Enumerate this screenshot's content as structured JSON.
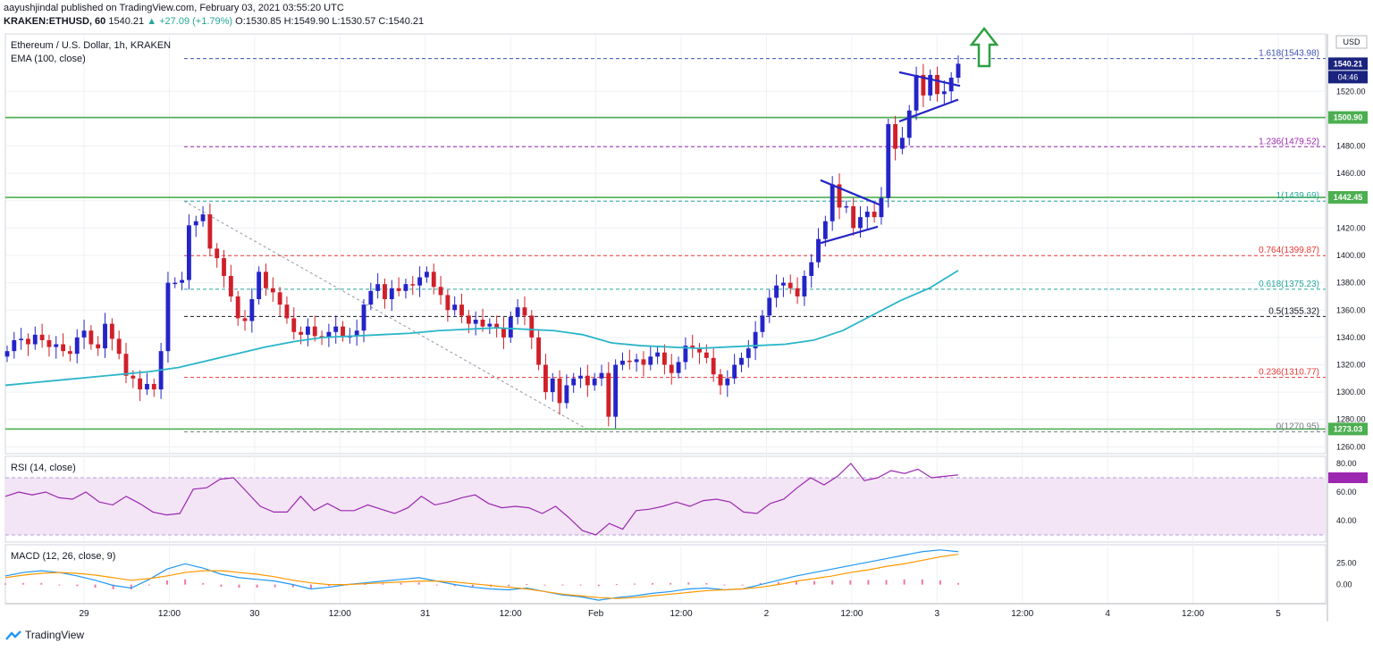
{
  "header": {
    "line1": "aayushjindal published on TradingView.com, February 03, 2021 03:55:20 UTC",
    "symbol": "KRAKEN:ETHUSD, 60",
    "last": "1540.21",
    "change": "▲ +27.09 (+1.79%)",
    "ohlc": "O:1530.85 H:1549.90 L:1530.57 C:1540.21"
  },
  "footer": {
    "brand": "TradingView"
  },
  "colors": {
    "up": "#2424c8",
    "down": "#d0202a",
    "ema": "#2ab5c8",
    "support": "#4caf50",
    "rsi": "#9c27b0",
    "macd": "#2196f3",
    "signal": "#ff9800",
    "arrow": "#2ea043"
  },
  "chart_data": [
    {
      "type": "candlestick",
      "title": "Ethereum / U.S. Dollar, 1h, KRAKEN",
      "indicator": "EMA (100, close)",
      "currency": "USD",
      "ylim": [
        1255,
        1562
      ],
      "y_ticks": [
        1260,
        1280,
        1300,
        1320,
        1340,
        1360,
        1380,
        1400,
        1420,
        1440,
        1460,
        1480,
        1500,
        1520
      ],
      "x_ticks": [
        "29",
        "12:00",
        "30",
        "12:00",
        "31",
        "12:00",
        "Feb",
        "12:00",
        "2",
        "12:00",
        "3",
        "12:00",
        "4",
        "12:00",
        "5"
      ],
      "ohlc_closes": [
        1330,
        1338,
        1339,
        1335,
        1342,
        1338,
        1333,
        1335,
        1330,
        1328,
        1340,
        1345,
        1335,
        1332,
        1350,
        1339,
        1328,
        1312,
        1310,
        1302,
        1306,
        1302,
        1330,
        1380,
        1380,
        1382,
        1422,
        1425,
        1430,
        1405,
        1398,
        1385,
        1370,
        1354,
        1352,
        1368,
        1388,
        1376,
        1373,
        1364,
        1354,
        1344,
        1342,
        1348,
        1341,
        1340,
        1344,
        1348,
        1341,
        1341,
        1345,
        1364,
        1374,
        1379,
        1368,
        1376,
        1374,
        1379,
        1378,
        1384,
        1388,
        1377,
        1371,
        1360,
        1364,
        1356,
        1350,
        1353,
        1348,
        1350,
        1347,
        1340,
        1355,
        1362,
        1356,
        1340,
        1320,
        1300,
        1310,
        1292,
        1305,
        1310,
        1312,
        1305,
        1310,
        1314,
        1282,
        1320,
        1323,
        1322,
        1324,
        1320,
        1326,
        1329,
        1320,
        1314,
        1322,
        1334,
        1332,
        1329,
        1325,
        1313,
        1305,
        1310,
        1320,
        1325,
        1332,
        1344,
        1356,
        1369,
        1378,
        1380,
        1376,
        1370,
        1385,
        1395,
        1412,
        1425,
        1452,
        1435,
        1436,
        1420,
        1428,
        1432,
        1428,
        1442,
        1496,
        1478,
        1486,
        1506,
        1532,
        1517,
        1532,
        1518,
        1520,
        1530,
        1540.21
      ],
      "ema_100": [
        1305,
        1307,
        1309,
        1311,
        1313,
        1315,
        1318,
        1323,
        1328,
        1333,
        1337,
        1340,
        1341,
        1342,
        1343,
        1345,
        1346,
        1347,
        1346,
        1345,
        1342,
        1336,
        1334,
        1333,
        1332,
        1333,
        1334,
        1335,
        1338,
        1345,
        1356,
        1367,
        1376,
        1389
      ],
      "support_lines": [
        {
          "label": "1500.90",
          "value": 1500.9
        },
        {
          "label": "1442.45",
          "value": 1442.45
        },
        {
          "label": "1273.03",
          "value": 1273.03
        }
      ],
      "fibonacci": [
        {
          "label": "1.618(1543.98)",
          "value": 1543.98
        },
        {
          "label": "1.236(1479.52)",
          "value": 1479.52
        },
        {
          "label": "1(1439.69)",
          "value": 1439.69
        },
        {
          "label": "0.764(1399.87)",
          "value": 1399.87
        },
        {
          "label": "0.618(1375.23)",
          "value": 1375.23
        },
        {
          "label": "0.5(1355.32)",
          "value": 1355.32
        },
        {
          "label": "0.236(1310.77)",
          "value": 1310.77
        },
        {
          "label": "0(1270.95)",
          "value": 1270.95
        }
      ],
      "price_tags": [
        {
          "label": "1540.21",
          "value": 1540.21
        },
        {
          "label": "04:46"
        }
      ]
    },
    {
      "type": "line",
      "title": "RSI (14, close)",
      "ylim": [
        25,
        85
      ],
      "y_ticks": [
        40,
        60,
        80
      ],
      "band": [
        30,
        70
      ],
      "values": [
        57,
        60,
        58,
        60,
        56,
        55,
        60,
        53,
        51,
        57,
        52,
        46,
        44,
        45,
        62,
        63,
        69,
        70,
        60,
        50,
        46,
        46,
        57,
        47,
        52,
        47,
        47,
        51,
        48,
        45,
        49,
        57,
        51,
        53,
        56,
        58,
        52,
        49,
        50,
        49,
        45,
        50,
        42,
        33,
        30,
        38,
        34,
        47,
        48,
        50,
        53,
        50,
        54,
        55,
        53,
        46,
        45,
        52,
        55,
        63,
        70,
        65,
        71,
        80,
        68,
        70,
        75,
        73,
        76,
        70,
        71,
        72
      ]
    },
    {
      "type": "line",
      "title": "MACD (12, 26, close, 9)",
      "ylim": [
        -22,
        46
      ],
      "y_ticks": [
        0.0,
        25.0
      ],
      "y_tick_labels": [
        "0.00",
        "25.00"
      ],
      "series": [
        {
          "name": "MACD",
          "values": [
            10,
            14,
            16,
            14,
            10,
            5,
            -1,
            -4,
            6,
            18,
            24,
            19,
            12,
            8,
            6,
            4,
            0,
            -5,
            -3,
            0,
            2,
            4,
            6,
            8,
            4,
            0,
            -3,
            -5,
            -6,
            -4,
            -8,
            -12,
            -14,
            -18,
            -15,
            -13,
            -10,
            -8,
            -5,
            -4,
            -6,
            -5,
            0,
            5,
            10,
            14,
            18,
            22,
            26,
            30,
            34,
            38,
            40,
            38
          ]
        },
        {
          "name": "Signal",
          "values": [
            8,
            11,
            13,
            14,
            13,
            11,
            8,
            5,
            7,
            10,
            14,
            16,
            16,
            14,
            12,
            9,
            5,
            2,
            0,
            0,
            1,
            2,
            3,
            4,
            4,
            3,
            1,
            -1,
            -3,
            -5,
            -8,
            -11,
            -13,
            -15,
            -16,
            -15,
            -13,
            -11,
            -9,
            -7,
            -6,
            -5,
            -3,
            0,
            4,
            7,
            10,
            14,
            17,
            21,
            24,
            28,
            32,
            35
          ]
        }
      ]
    }
  ]
}
